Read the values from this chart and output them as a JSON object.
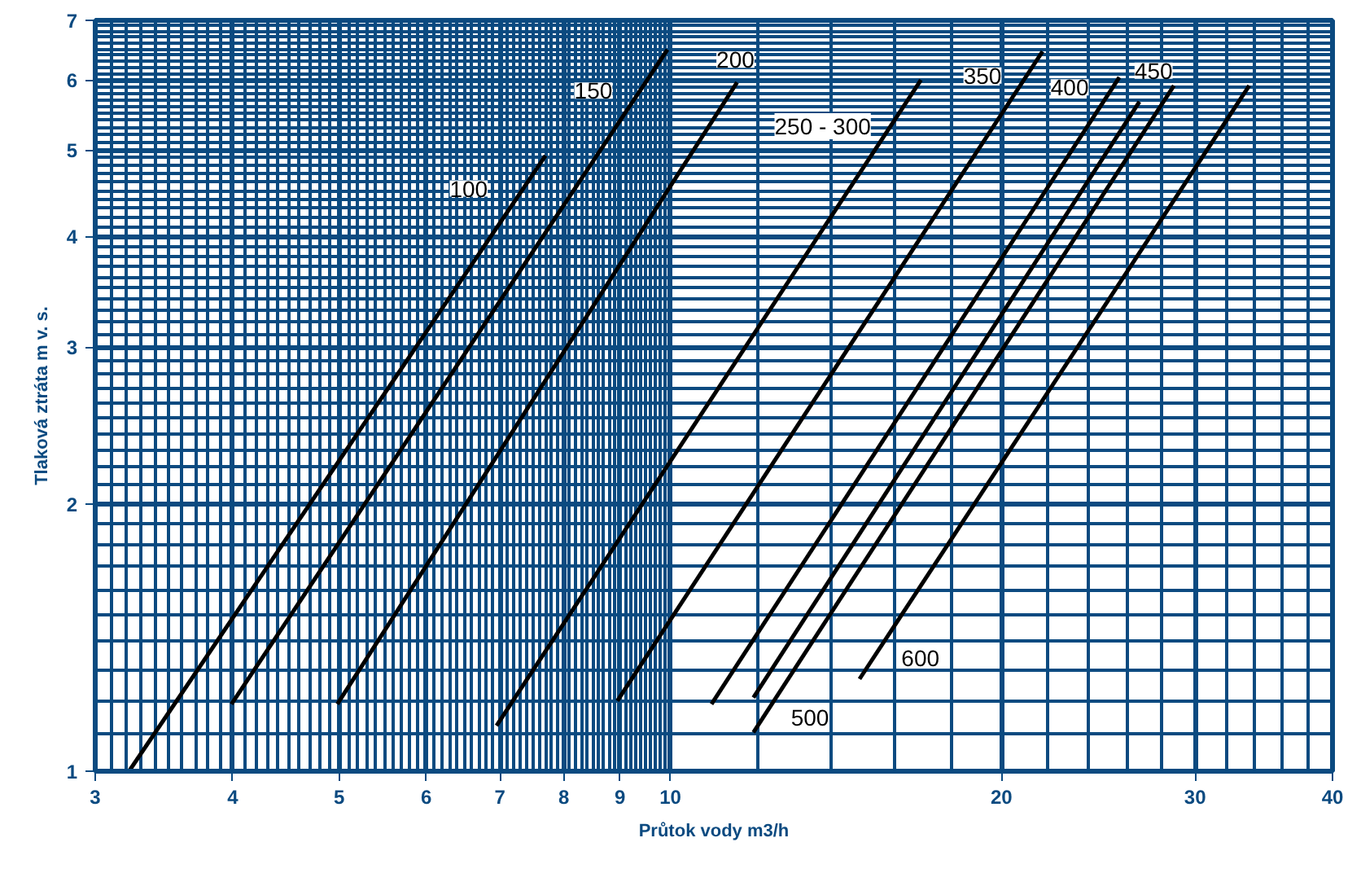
{
  "chart_data": {
    "type": "line",
    "xlabel": "Průtok vody m3/h",
    "ylabel": "Tlaková ztráta m v. s.",
    "log": "xy",
    "grid": true,
    "xlim": [
      3,
      40
    ],
    "ylim": [
      1,
      7
    ],
    "xticks": [
      3,
      4,
      5,
      6,
      7,
      8,
      9,
      10,
      20,
      30,
      40
    ],
    "yticks": [
      1,
      2,
      3,
      4,
      5,
      6,
      7
    ],
    "series": [
      {
        "color": "#000000",
        "x": [
          3.22,
          7.7
        ],
        "values": [
          1.0,
          4.93
        ]
      },
      {
        "color": "#000000",
        "x": [
          3.99,
          9.94
        ],
        "values": [
          1.19,
          6.49
        ]
      },
      {
        "color": "#000000",
        "x": [
          4.98,
          11.5
        ],
        "values": [
          1.19,
          5.96
        ]
      },
      {
        "color": "#000000",
        "x": [
          6.95,
          16.9
        ],
        "values": [
          1.125,
          6.0
        ]
      },
      {
        "color": "#000000",
        "x": [
          8.95,
          21.8
        ],
        "values": [
          1.2,
          6.46
        ]
      },
      {
        "color": "#000000",
        "x": [
          10.9,
          25.6
        ],
        "values": [
          1.19,
          6.04
        ]
      },
      {
        "color": "#000000",
        "x": [
          11.9,
          26.7
        ],
        "values": [
          1.21,
          5.67
        ]
      },
      {
        "color": "#000000",
        "x": [
          11.9,
          28.7
        ],
        "values": [
          1.106,
          5.91
        ]
      },
      {
        "color": "#000000",
        "x": [
          14.86,
          33.6
        ],
        "values": [
          1.27,
          5.91
        ]
      }
    ],
    "annotations": [
      {
        "text": "100",
        "x": 7.14,
        "y": 4.34
      },
      {
        "text": "150",
        "x": 9.05,
        "y": 5.64
      },
      {
        "text": "200",
        "x": 11.46,
        "y": 5.81
      },
      {
        "text": "250 - 300",
        "x": 15.5,
        "y": 5.1
      },
      {
        "text": "350",
        "x": 20.3,
        "y": 5.72
      },
      {
        "text": "400",
        "x": 24.7,
        "y": 5.64
      },
      {
        "text": "450",
        "x": 26.4,
        "y": 5.6
      },
      {
        "text": "500",
        "x": 12.3,
        "y": 1.16
      },
      {
        "text": "600",
        "x": 15.5,
        "y": 1.33
      }
    ]
  }
}
